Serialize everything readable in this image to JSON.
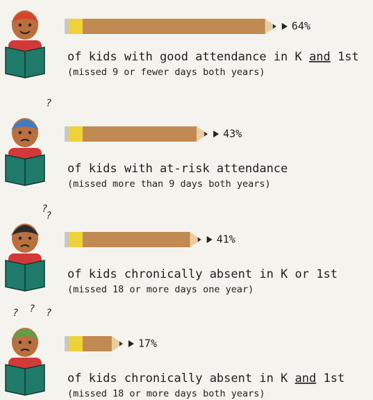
{
  "chart_data": {
    "type": "bar",
    "categories": [
      "of kids with good attendance in K and 1st",
      "of kids with at-risk attendance",
      "of kids chronically absent in K or 1st",
      "of kids chronically absent in K and 1st"
    ],
    "underline": [
      "and",
      null,
      null,
      "and"
    ],
    "notes": [
      "(missed 9 or fewer days both years)",
      "(missed more than 9 days both years)",
      "(missed 18 or more days one year)",
      "(missed 18 or more days both years)"
    ],
    "question_marks": [
      [],
      [
        "?"
      ],
      [
        "?",
        "?"
      ],
      [
        "?",
        "?",
        "?"
      ]
    ],
    "values": [
      64,
      43,
      41,
      17
    ],
    "value_labels": [
      "64%",
      "43%",
      "41%",
      "17%"
    ],
    "color": "#c08a52"
  }
}
